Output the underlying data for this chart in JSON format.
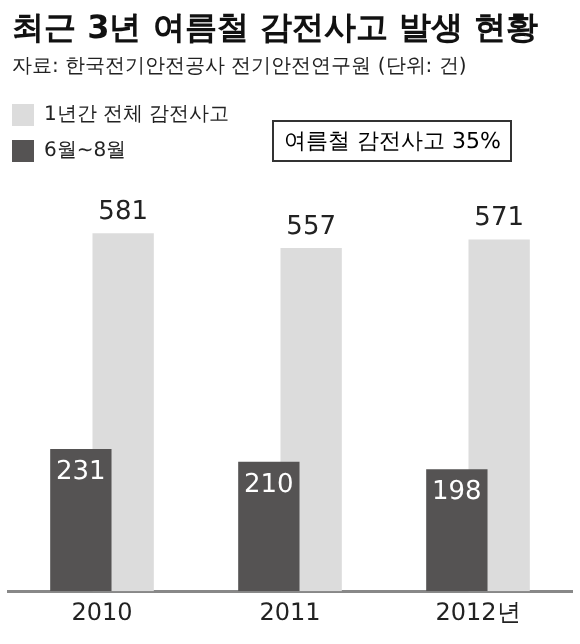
{
  "chart_data": {
    "type": "bar",
    "title": "최근 3년 여름철 감전사고 발생 현황",
    "subtitle": "자료: 한국전기안전공사 전기안전연구원 (단위: 건)",
    "categories": [
      "2010",
      "2011",
      "2012년"
    ],
    "series": [
      {
        "name": "1년간 전체 감전사고",
        "color": "#dcdcdc",
        "values": [
          581,
          557,
          571
        ]
      },
      {
        "name": "6월~8월",
        "color": "#555353",
        "values": [
          231,
          210,
          198
        ]
      }
    ],
    "annotations": [
      "여름철 감전사고 35%"
    ],
    "data_labels": true,
    "legend": "top left",
    "grid": false
  }
}
